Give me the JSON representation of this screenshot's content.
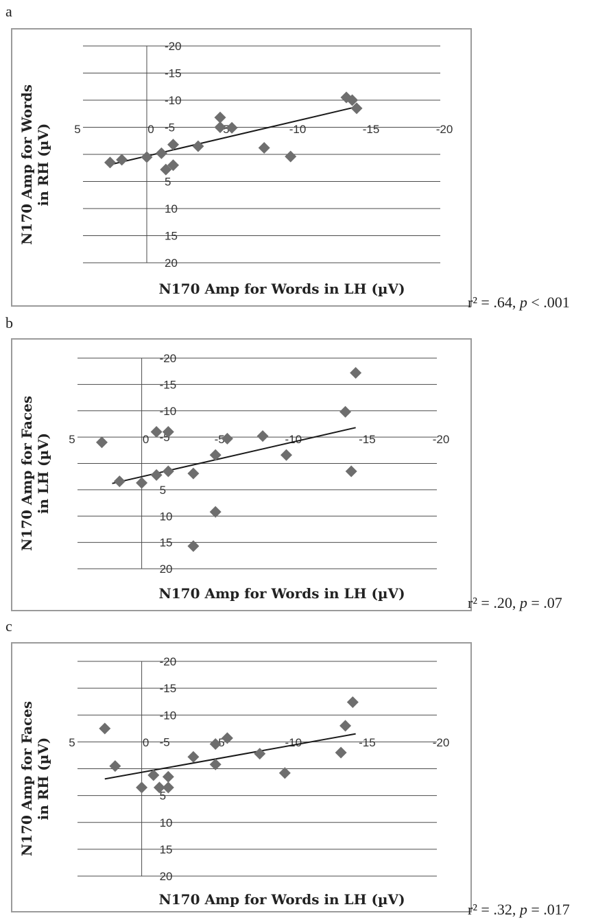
{
  "chart_data": [
    {
      "panel": "a",
      "type": "scatter",
      "xlabel": "N170 Amp for Words in LH (µV)",
      "ylabel_lines": [
        "N170 Amp for Words",
        "in RH (µV)"
      ],
      "stat": {
        "r2": "r² = .64, ",
        "p_sym": "p",
        "p_rest": " < .001"
      },
      "xlim": [
        5,
        -20
      ],
      "ylim": [
        -20,
        20
      ],
      "xticks": [
        5,
        0,
        -5,
        -10,
        -15,
        -20
      ],
      "yticks": [
        -20,
        -15,
        -10,
        -5,
        0,
        5,
        10,
        15,
        20
      ],
      "points": [
        [
          2.5,
          1.5
        ],
        [
          1.7,
          1.0
        ],
        [
          0,
          0.5
        ],
        [
          -1,
          -0.2
        ],
        [
          -1.3,
          2.8
        ],
        [
          -1.8,
          2.0
        ],
        [
          -1.8,
          -1.8
        ],
        [
          -3.5,
          -1.5
        ],
        [
          -5,
          -5
        ],
        [
          -5,
          -6.8
        ],
        [
          -5.8,
          -4.9
        ],
        [
          -8,
          -1.2
        ],
        [
          -9.8,
          0.4
        ],
        [
          -13.6,
          -10.5
        ],
        [
          -14,
          -10
        ],
        [
          -14.3,
          -8.5
        ]
      ],
      "trend": [
        [
          2.5,
          1.9
        ],
        [
          -14.5,
          -8.9
        ]
      ]
    },
    {
      "panel": "b",
      "type": "scatter",
      "xlabel": "N170 Amp for Words in LH (µV)",
      "ylabel_lines": [
        "N170 Amp for Faces",
        "in LH (µV)"
      ],
      "stat": {
        "r2": "r² = .20, ",
        "p_sym": "p",
        "p_rest": " = .07"
      },
      "xlim": [
        5,
        -20
      ],
      "ylim": [
        -20,
        20
      ],
      "xticks": [
        5,
        0,
        -5,
        -10,
        -15,
        -20
      ],
      "yticks": [
        -20,
        -15,
        -10,
        -5,
        0,
        5,
        10,
        15,
        20
      ],
      "points": [
        [
          2.7,
          -4
        ],
        [
          1.5,
          3.4
        ],
        [
          0,
          3.7
        ],
        [
          -1,
          2.2
        ],
        [
          -1,
          -6
        ],
        [
          -1.8,
          -6
        ],
        [
          -1.8,
          1.5
        ],
        [
          -3.5,
          1.9
        ],
        [
          -5,
          -1.6
        ],
        [
          -5,
          9.2
        ],
        [
          -5.8,
          -4.7
        ],
        [
          -8.2,
          -5.2
        ],
        [
          -9.8,
          -1.6
        ],
        [
          -13.8,
          -9.8
        ],
        [
          -14.2,
          1.5
        ],
        [
          -14.5,
          -17.2
        ],
        [
          -3.5,
          15.7
        ]
      ],
      "trend": [
        [
          2.0,
          3.8
        ],
        [
          -14.5,
          -6.8
        ]
      ]
    },
    {
      "panel": "c",
      "type": "scatter",
      "xlabel": "N170 Amp for Words in LH (µV)",
      "ylabel_lines": [
        "N170 Amp for Faces",
        "in RH (µV)"
      ],
      "stat": {
        "r2": "r² = .32, ",
        "p_sym": "p",
        "p_rest": " = .017"
      },
      "xlim": [
        5,
        -20
      ],
      "ylim": [
        -20,
        20
      ],
      "xticks": [
        5,
        0,
        -5,
        -10,
        -15,
        -20
      ],
      "yticks": [
        -20,
        -15,
        -10,
        -5,
        0,
        5,
        10,
        15,
        20
      ],
      "points": [
        [
          2.5,
          -7.5
        ],
        [
          1.8,
          -0.5
        ],
        [
          0,
          3.5
        ],
        [
          -0.8,
          1.2
        ],
        [
          -1.2,
          3.5
        ],
        [
          -1.8,
          3.5
        ],
        [
          -1.8,
          1.5
        ],
        [
          -3.5,
          -2.2
        ],
        [
          -5,
          -0.8
        ],
        [
          -5,
          -4.6
        ],
        [
          -5.8,
          -5.7
        ],
        [
          -8,
          -2.8
        ],
        [
          -9.7,
          0.8
        ],
        [
          -13.5,
          -3
        ],
        [
          -13.8,
          -8
        ],
        [
          -14.3,
          -12.4
        ]
      ],
      "trend": [
        [
          2.5,
          1.9
        ],
        [
          -14.5,
          -6.5
        ]
      ]
    }
  ]
}
